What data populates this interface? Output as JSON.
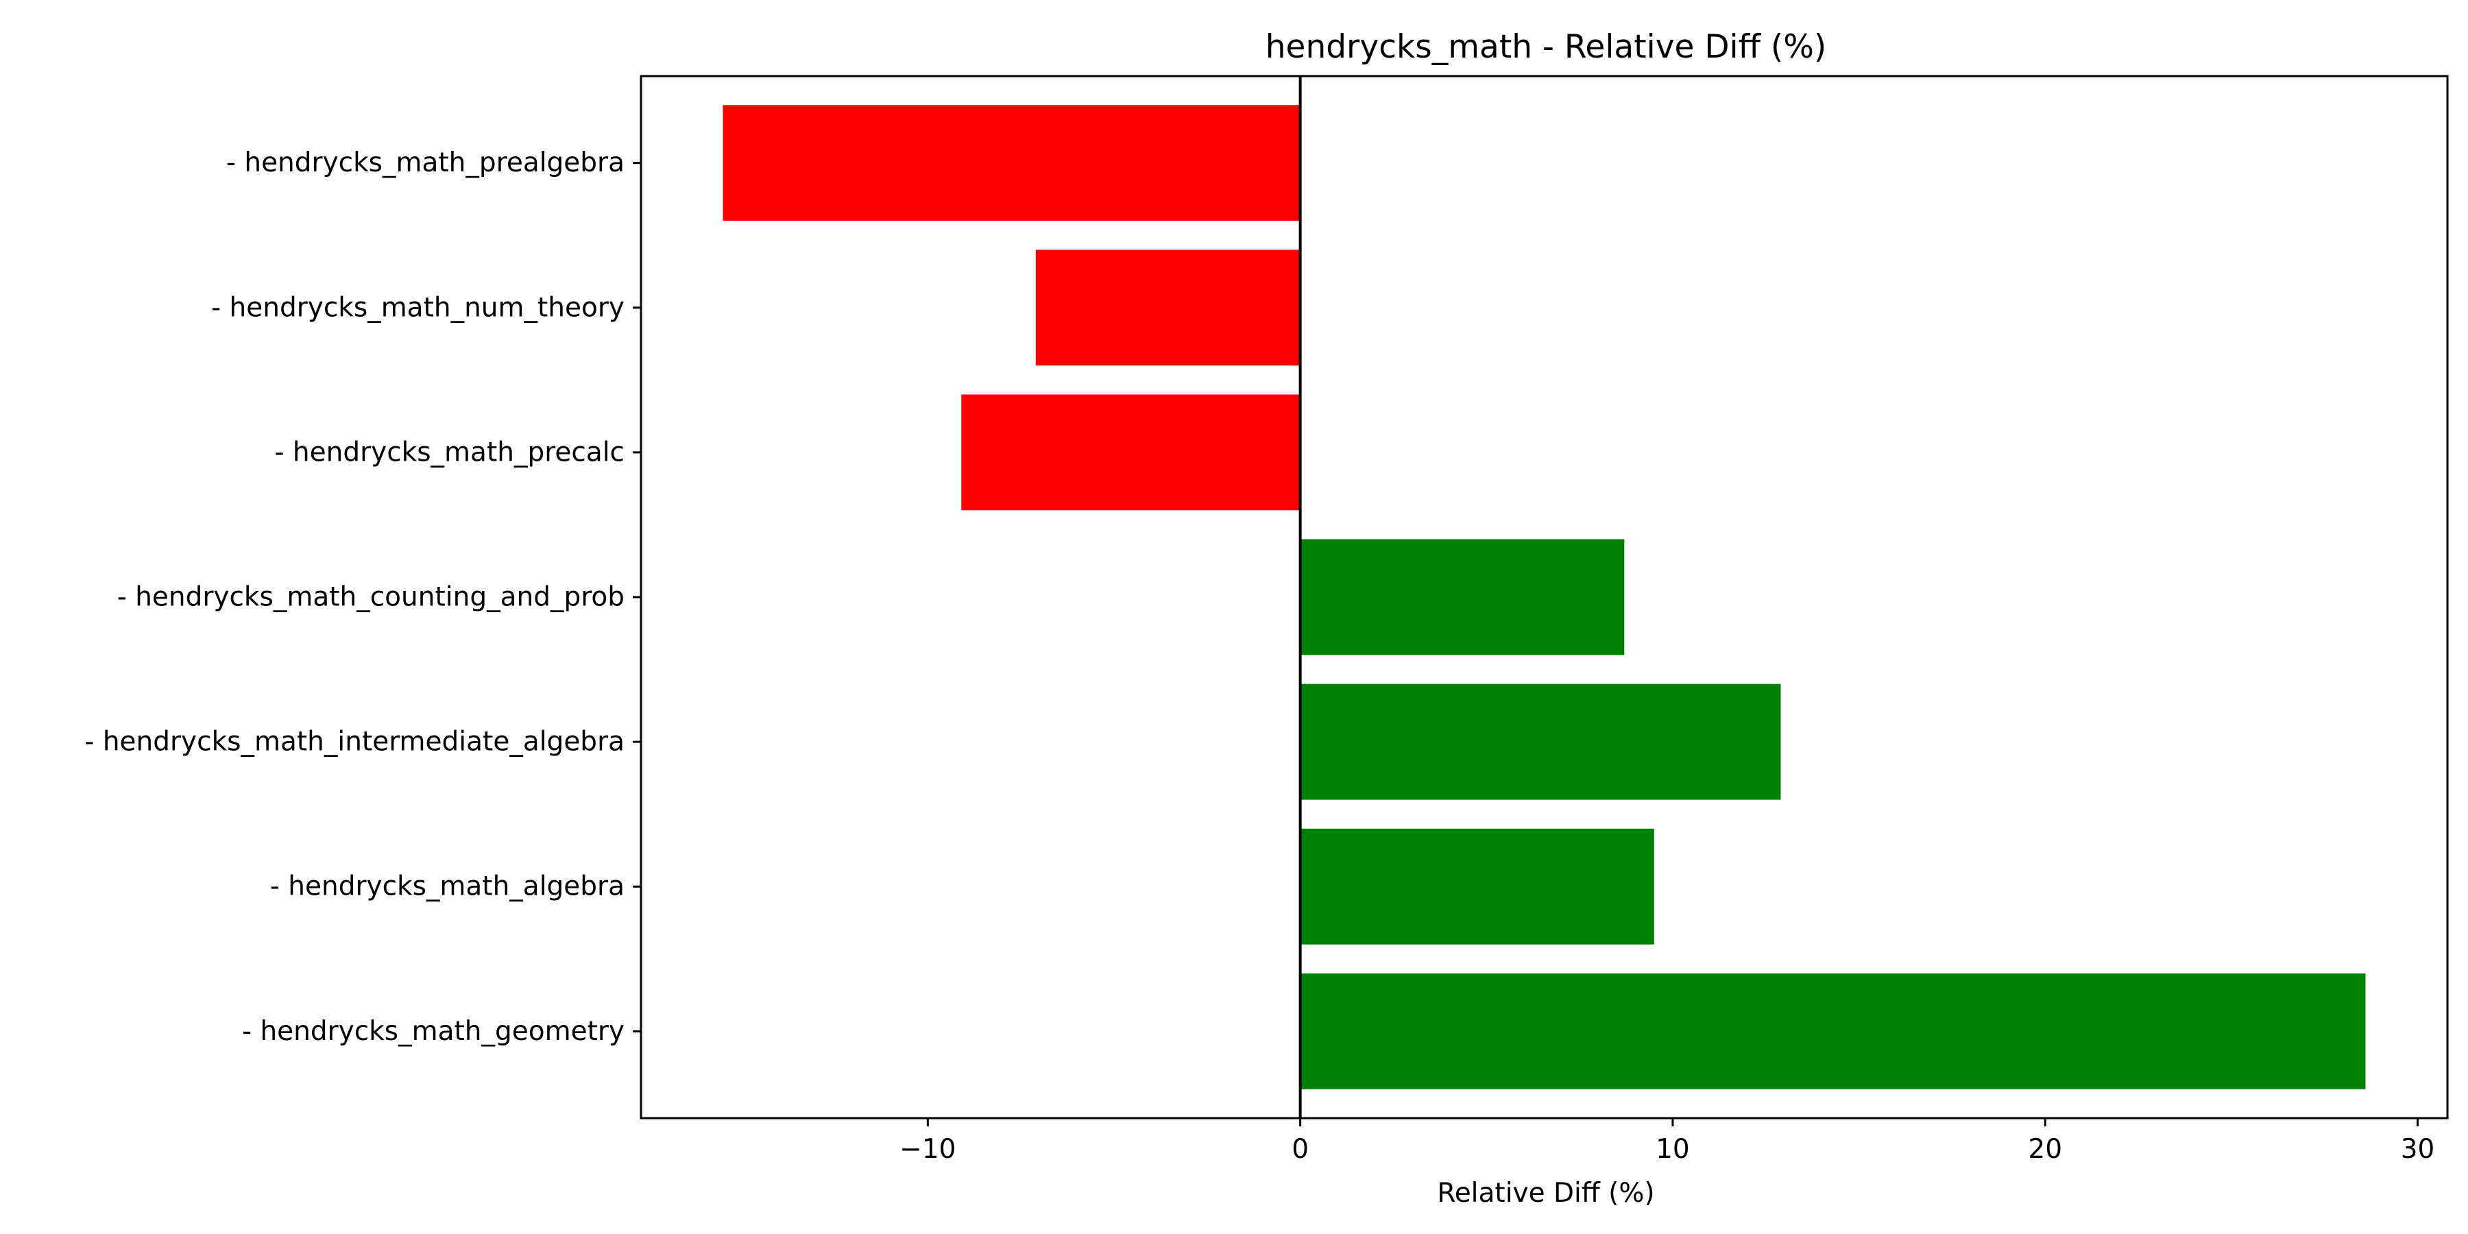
{
  "chart_data": {
    "type": "bar",
    "orientation": "horizontal",
    "title": "hendrycks_math - Relative Diff (%)",
    "xlabel": "Relative Diff (%)",
    "ylabel": "",
    "xlim": [
      -17.7,
      30.8
    ],
    "xticks": [
      -10,
      0,
      10,
      20,
      30
    ],
    "xtick_labels": [
      "−10",
      "0",
      "10",
      "20",
      "30"
    ],
    "categories": [
      "- hendrycks_math_prealgebra",
      "- hendrycks_math_num_theory",
      "- hendrycks_math_precalc",
      "- hendrycks_math_counting_and_prob",
      "- hendrycks_math_intermediate_algebra",
      "- hendrycks_math_algebra",
      "- hendrycks_math_geometry"
    ],
    "values": [
      -15.5,
      -7.1,
      -9.1,
      8.7,
      12.9,
      9.5,
      28.6
    ],
    "colors": {
      "positive": "#008000",
      "negative": "#ff0000",
      "zero_line": "#000000",
      "axes": "#000000"
    },
    "grid": false,
    "legend": "none"
  }
}
